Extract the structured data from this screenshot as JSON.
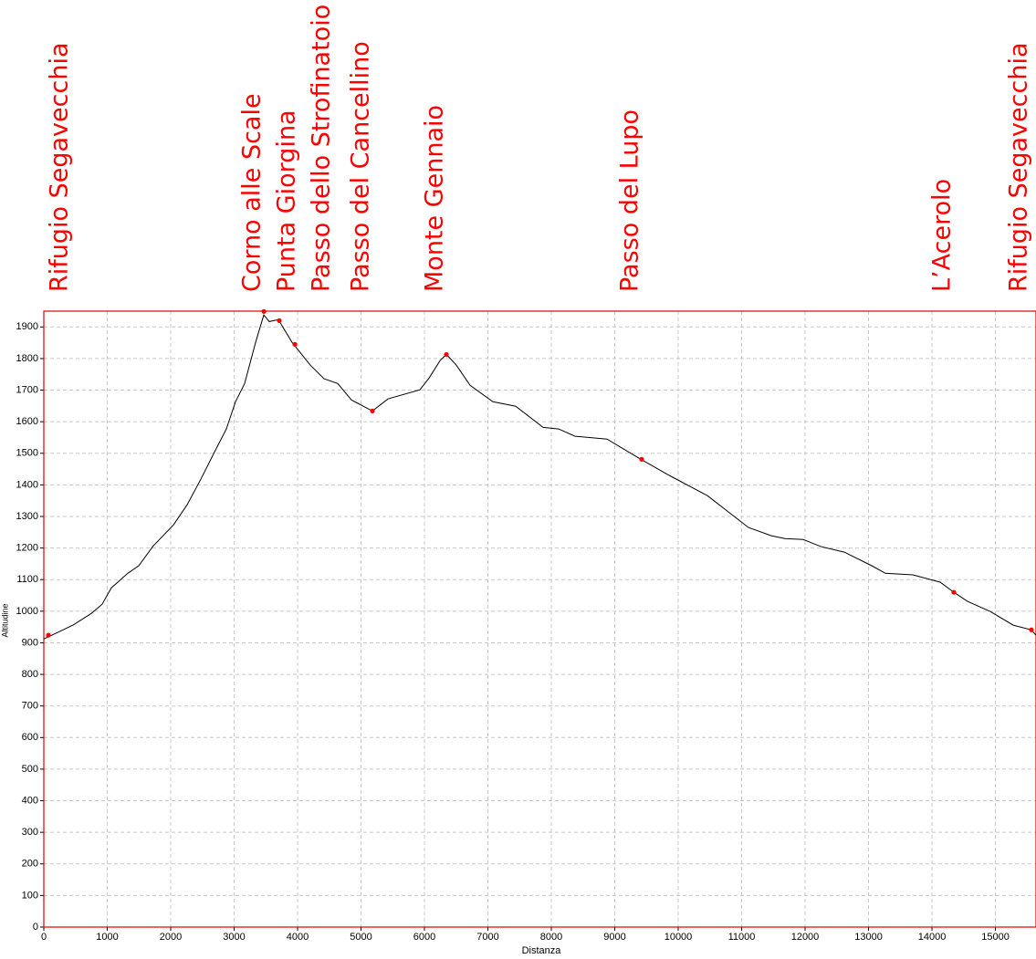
{
  "chart_data": {
    "type": "line",
    "x_label": "Distanza",
    "y_label": "Altitudine",
    "x": [
      0,
      460,
      748,
      920,
      1065,
      1324,
      1496,
      1727,
      2043,
      2259,
      2475,
      2691,
      2878,
      3022,
      3165,
      3338,
      3468,
      3554,
      3698,
      3914,
      4201,
      4417,
      4633,
      4849,
      5180,
      5424,
      5928,
      6072,
      6245,
      6345,
      6504,
      6719,
      7079,
      7439,
      7871,
      8115,
      8374,
      8878,
      9410,
      9885,
      10460,
      11108,
      11468,
      11683,
      11971,
      12259,
      12619,
      13050,
      13266,
      13698,
      14129,
      14345,
      14561,
      14921,
      15281,
      15568,
      15640
    ],
    "series": [
      {
        "color": "#000000",
        "values": [
          912,
          956,
          993,
          1022,
          1074,
          1120,
          1144,
          1207,
          1273,
          1337,
          1418,
          1504,
          1577,
          1663,
          1721,
          1851,
          1938,
          1917,
          1923,
          1851,
          1779,
          1736,
          1721,
          1669,
          1634,
          1672,
          1701,
          1738,
          1793,
          1813,
          1779,
          1715,
          1663,
          1649,
          1582,
          1577,
          1554,
          1545,
          1481,
          1427,
          1366,
          1265,
          1239,
          1230,
          1227,
          1204,
          1187,
          1144,
          1120,
          1115,
          1092,
          1060,
          1031,
          999,
          956,
          941,
          924
        ]
      }
    ],
    "waypoints": {
      "color": "#ff0000",
      "labels": [
        "Rifugio Segavecchia",
        "Corno alle Scale",
        "Punta Giorgina",
        "Passo dello Strofinatoio",
        "Passo del Cancellino",
        "Monte Gennaio",
        "Passo del Lupo",
        "L’Acerolo",
        "Rifugio Segavecchia"
      ],
      "x": [
        72,
        3468,
        3712,
        3957,
        5180,
        6345,
        9424,
        14345,
        15568
      ],
      "y": [
        924,
        1949,
        1920,
        1845,
        1634,
        1813,
        1481,
        1060,
        941
      ]
    },
    "xlim": [
      0,
      15640
    ],
    "ylim": [
      0,
      1950
    ],
    "xticks": [
      0,
      1000,
      2000,
      3000,
      4000,
      5000,
      6000,
      7000,
      8000,
      9000,
      10000,
      11000,
      12000,
      13000,
      14000,
      15000
    ],
    "yticks": [
      0,
      100,
      200,
      300,
      400,
      500,
      600,
      700,
      800,
      900,
      1000,
      1100,
      1200,
      1300,
      1400,
      1500,
      1600,
      1700,
      1800,
      1900
    ],
    "grid": true,
    "frame_color": "#e00000"
  }
}
